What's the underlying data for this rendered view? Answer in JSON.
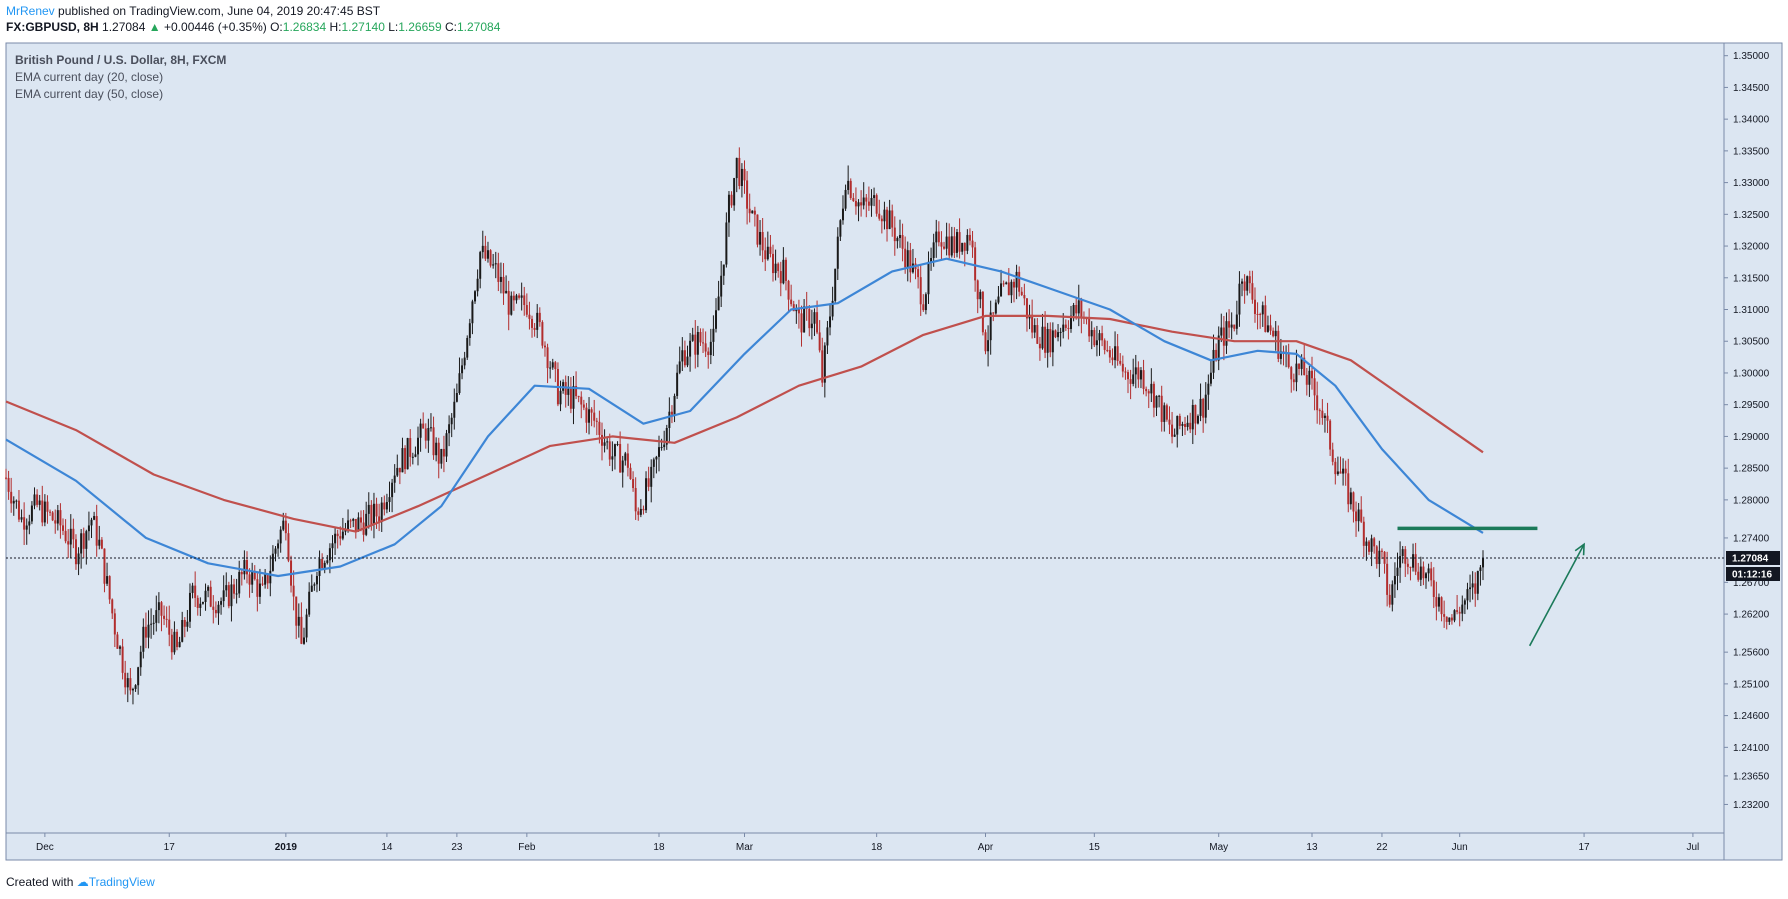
{
  "header": {
    "author": "MrRenev",
    "published_text": "published on TradingView.com, June 04, 2019 20:47:45 BST",
    "symbol": "FX:GBPUSD, 8H",
    "last": "1.27084",
    "change": "+0.00446 (+0.35%)",
    "open_label": "O:",
    "open": "1.26834",
    "high_label": "H:",
    "high": "1.27140",
    "low_label": "L:",
    "low": "1.26659",
    "close_label": "C:",
    "close": "1.27084"
  },
  "footer": {
    "created_with": "Created with",
    "brand": "TradingView"
  },
  "chart_data": {
    "type": "candlestick",
    "title": "British Pound / U.S. Dollar, 8H, FXCM",
    "indicators": [
      "EMA current day (20, close)",
      "EMA current day (50, close)"
    ],
    "ylim": [
      1.2275,
      1.352
    ],
    "y_ticks": [
      "1.35000",
      "1.34500",
      "1.34000",
      "1.33500",
      "1.33000",
      "1.32500",
      "1.32000",
      "1.31500",
      "1.31000",
      "1.30500",
      "1.30000",
      "1.29500",
      "1.29000",
      "1.28500",
      "1.28000",
      "1.27400",
      "1.26700",
      "1.26200",
      "1.25600",
      "1.25100",
      "1.24600",
      "1.24100",
      "1.23650",
      "1.23200"
    ],
    "x_start": "2018-11-26",
    "x_end": "2019-07-05",
    "x_ticks": [
      {
        "date": "2018-12-01",
        "label": "Dec"
      },
      {
        "date": "2018-12-17",
        "label": "17"
      },
      {
        "date": "2019-01-01",
        "label": "2019"
      },
      {
        "date": "2019-01-14",
        "label": "14"
      },
      {
        "date": "2019-01-23",
        "label": "23"
      },
      {
        "date": "2019-02-01",
        "label": "Feb"
      },
      {
        "date": "2019-02-18",
        "label": "18"
      },
      {
        "date": "2019-03-01",
        "label": "Mar"
      },
      {
        "date": "2019-03-18",
        "label": "18"
      },
      {
        "date": "2019-04-01",
        "label": "Apr"
      },
      {
        "date": "2019-04-15",
        "label": "15"
      },
      {
        "date": "2019-05-01",
        "label": "May"
      },
      {
        "date": "2019-05-13",
        "label": "13"
      },
      {
        "date": "2019-05-22",
        "label": "22"
      },
      {
        "date": "2019-06-01",
        "label": "Jun"
      },
      {
        "date": "2019-06-17",
        "label": "17"
      },
      {
        "date": "2019-07-01",
        "label": "Jul"
      }
    ],
    "price_path": [
      [
        "2018-11-26",
        1.2835
      ],
      [
        "2018-11-28",
        1.277
      ],
      [
        "2018-11-30",
        1.279
      ],
      [
        "2018-12-03",
        1.276
      ],
      [
        "2018-12-05",
        1.272
      ],
      [
        "2018-12-07",
        1.277
      ],
      [
        "2018-12-08",
        1.273
      ],
      [
        "2018-12-10",
        1.26
      ],
      [
        "2018-12-12",
        1.249
      ],
      [
        "2018-12-14",
        1.26
      ],
      [
        "2018-12-16",
        1.262
      ],
      [
        "2018-12-18",
        1.256
      ],
      [
        "2018-12-20",
        1.265
      ],
      [
        "2018-12-24",
        1.264
      ],
      [
        "2018-12-27",
        1.269
      ],
      [
        "2018-12-29",
        1.265
      ],
      [
        "2018-12-31",
        1.274
      ],
      [
        "2019-01-01",
        1.277
      ],
      [
        "2019-01-02",
        1.264
      ],
      [
        "2019-01-03",
        1.257
      ],
      [
        "2019-01-05",
        1.27
      ],
      [
        "2019-01-08",
        1.275
      ],
      [
        "2019-01-10",
        1.276
      ],
      [
        "2019-01-13",
        1.278
      ],
      [
        "2019-01-15",
        1.285
      ],
      [
        "2019-01-17",
        1.288
      ],
      [
        "2019-01-19",
        1.291
      ],
      [
        "2019-01-21",
        1.286
      ],
      [
        "2019-01-23",
        1.296
      ],
      [
        "2019-01-25",
        1.312
      ],
      [
        "2019-01-26",
        1.319
      ],
      [
        "2019-01-28",
        1.316
      ],
      [
        "2019-01-30",
        1.31
      ],
      [
        "2019-02-01",
        1.311
      ],
      [
        "2019-02-03",
        1.306
      ],
      [
        "2019-02-05",
        1.297
      ],
      [
        "2019-02-07",
        1.296
      ],
      [
        "2019-02-10",
        1.292
      ],
      [
        "2019-02-12",
        1.287
      ],
      [
        "2019-02-14",
        1.286
      ],
      [
        "2019-02-15",
        1.278
      ],
      [
        "2019-02-17",
        1.283
      ],
      [
        "2019-02-19",
        1.292
      ],
      [
        "2019-02-21",
        1.303
      ],
      [
        "2019-02-23",
        1.305
      ],
      [
        "2019-02-25",
        1.305
      ],
      [
        "2019-02-27",
        1.326
      ],
      [
        "2019-02-28",
        1.333
      ],
      [
        "2019-03-02",
        1.324
      ],
      [
        "2019-03-04",
        1.318
      ],
      [
        "2019-03-06",
        1.316
      ],
      [
        "2019-03-08",
        1.308
      ],
      [
        "2019-03-10",
        1.309
      ],
      [
        "2019-03-11",
        1.299
      ],
      [
        "2019-03-13",
        1.32
      ],
      [
        "2019-03-14",
        1.331
      ],
      [
        "2019-03-16",
        1.326
      ],
      [
        "2019-03-18",
        1.327
      ],
      [
        "2019-03-20",
        1.323
      ],
      [
        "2019-03-22",
        1.318
      ],
      [
        "2019-03-24",
        1.312
      ],
      [
        "2019-03-26",
        1.322
      ],
      [
        "2019-03-28",
        1.32
      ],
      [
        "2019-03-30",
        1.322
      ],
      [
        "2019-04-01",
        1.305
      ],
      [
        "2019-04-03",
        1.312
      ],
      [
        "2019-04-05",
        1.315
      ],
      [
        "2019-04-07",
        1.307
      ],
      [
        "2019-04-09",
        1.305
      ],
      [
        "2019-04-11",
        1.308
      ],
      [
        "2019-04-13",
        1.31
      ],
      [
        "2019-04-15",
        1.306
      ],
      [
        "2019-04-17",
        1.303
      ],
      [
        "2019-04-19",
        1.3
      ],
      [
        "2019-04-21",
        1.3
      ],
      [
        "2019-04-23",
        1.296
      ],
      [
        "2019-04-25",
        1.29
      ],
      [
        "2019-04-27",
        1.293
      ],
      [
        "2019-04-29",
        1.295
      ],
      [
        "2019-05-01",
        1.305
      ],
      [
        "2019-05-03",
        1.308
      ],
      [
        "2019-05-04",
        1.316
      ],
      [
        "2019-05-06",
        1.31
      ],
      [
        "2019-05-08",
        1.306
      ],
      [
        "2019-05-10",
        1.301
      ],
      [
        "2019-05-12",
        1.3
      ],
      [
        "2019-05-14",
        1.295
      ],
      [
        "2019-05-16",
        1.286
      ],
      [
        "2019-05-18",
        1.28
      ],
      [
        "2019-05-20",
        1.274
      ],
      [
        "2019-05-22",
        1.27
      ],
      [
        "2019-05-23",
        1.264
      ],
      [
        "2019-05-24",
        1.27
      ],
      [
        "2019-05-25",
        1.272
      ],
      [
        "2019-05-27",
        1.269
      ],
      [
        "2019-05-29",
        1.265
      ],
      [
        "2019-05-31",
        1.261
      ],
      [
        "2019-06-01",
        1.263
      ],
      [
        "2019-06-03",
        1.266
      ],
      [
        "2019-06-04",
        1.2708
      ]
    ],
    "ema20_path": [
      [
        "2018-11-26",
        1.2895
      ],
      [
        "2018-12-05",
        1.283
      ],
      [
        "2018-12-14",
        1.274
      ],
      [
        "2018-12-22",
        1.27
      ],
      [
        "2018-12-31",
        1.268
      ],
      [
        "2019-01-08",
        1.2695
      ],
      [
        "2019-01-15",
        1.273
      ],
      [
        "2019-01-21",
        1.279
      ],
      [
        "2019-01-27",
        1.29
      ],
      [
        "2019-02-02",
        1.298
      ],
      [
        "2019-02-09",
        1.2975
      ],
      [
        "2019-02-16",
        1.292
      ],
      [
        "2019-02-22",
        1.294
      ],
      [
        "2019-03-01",
        1.303
      ],
      [
        "2019-03-07",
        1.31
      ],
      [
        "2019-03-13",
        1.311
      ],
      [
        "2019-03-20",
        1.316
      ],
      [
        "2019-03-27",
        1.318
      ],
      [
        "2019-04-03",
        1.316
      ],
      [
        "2019-04-10",
        1.313
      ],
      [
        "2019-04-17",
        1.31
      ],
      [
        "2019-04-24",
        1.305
      ],
      [
        "2019-04-30",
        1.302
      ],
      [
        "2019-05-06",
        1.3035
      ],
      [
        "2019-05-11",
        1.303
      ],
      [
        "2019-05-16",
        1.298
      ],
      [
        "2019-05-22",
        1.288
      ],
      [
        "2019-05-28",
        1.28
      ],
      [
        "2019-06-04",
        1.2748
      ]
    ],
    "ema50_path": [
      [
        "2018-11-26",
        1.2955
      ],
      [
        "2018-12-05",
        1.291
      ],
      [
        "2018-12-15",
        1.284
      ],
      [
        "2018-12-24",
        1.28
      ],
      [
        "2019-01-02",
        1.277
      ],
      [
        "2019-01-10",
        1.275
      ],
      [
        "2019-01-18",
        1.279
      ],
      [
        "2019-01-27",
        1.284
      ],
      [
        "2019-02-04",
        1.2885
      ],
      [
        "2019-02-12",
        1.29
      ],
      [
        "2019-02-20",
        1.289
      ],
      [
        "2019-02-28",
        1.293
      ],
      [
        "2019-03-08",
        1.298
      ],
      [
        "2019-03-16",
        1.301
      ],
      [
        "2019-03-24",
        1.306
      ],
      [
        "2019-04-01",
        1.309
      ],
      [
        "2019-04-09",
        1.309
      ],
      [
        "2019-04-17",
        1.3085
      ],
      [
        "2019-04-25",
        1.3065
      ],
      [
        "2019-05-03",
        1.305
      ],
      [
        "2019-05-11",
        1.305
      ],
      [
        "2019-05-18",
        1.302
      ],
      [
        "2019-05-25",
        1.296
      ],
      [
        "2019-06-04",
        1.2875
      ]
    ],
    "last_price": 1.27084,
    "last_price_label": "1.27084",
    "countdown_label": "01:12:16",
    "resistance_line": {
      "from": "2019-05-24",
      "to": "2019-06-11",
      "price": 1.2755
    },
    "arrow": {
      "from_date": "2019-06-10",
      "from_price": 1.257,
      "to_date": "2019-06-17",
      "to_price": 1.273
    },
    "colors": {
      "bg": "#dce6f2",
      "up": "#1a1a1a",
      "down": "#b22d2d",
      "ema20": "#3d86d6",
      "ema50": "#c0504d",
      "resistance": "#1b7a5a",
      "arrow": "#1b7a5a",
      "axis": "#7a8aa8"
    }
  }
}
